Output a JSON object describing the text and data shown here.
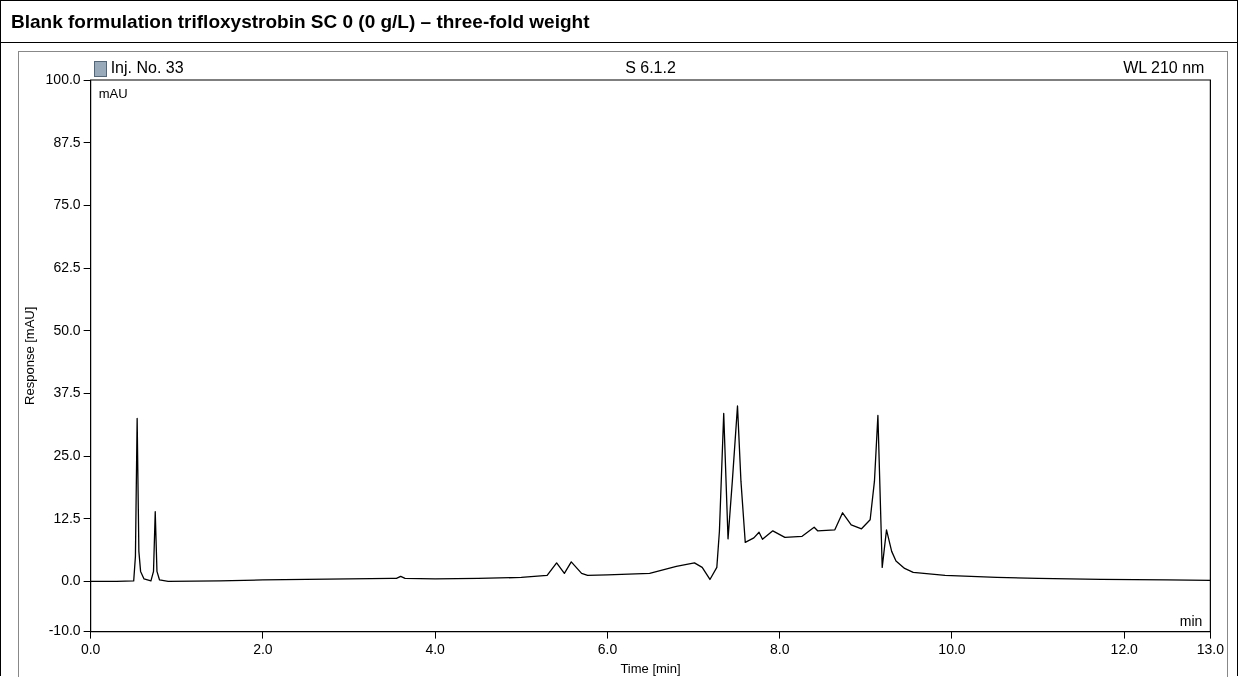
{
  "chart_data": {
    "type": "line",
    "title": "Blank formulation trifloxystrobin SC 0 (0 g/L) – three-fold weight",
    "xlabel": "Time [min]",
    "ylabel": "Response [mAU]",
    "annotations": [
      "Inj. No. 33",
      "S 6.1.2",
      "WL 210 nm",
      "mAU",
      "min"
    ],
    "series": [
      {
        "color": "#000000",
        "x": [
          0,
          0.3,
          0.5,
          0.52,
          0.54,
          0.56,
          0.58,
          0.62,
          0.7,
          0.73,
          0.75,
          0.77,
          0.8,
          0.9,
          1.5,
          2,
          2.5,
          3,
          3.5,
          3.55,
          3.6,
          3.65,
          4,
          4.5,
          5,
          5.3,
          5.41,
          5.5,
          5.58,
          5.7,
          5.77,
          6,
          6.49,
          6.8,
          7.01,
          7.1,
          7.19,
          7.27,
          7.3,
          7.35,
          7.4,
          7.45,
          7.51,
          7.55,
          7.6,
          7.7,
          7.76,
          7.8,
          7.92,
          8.06,
          8.26,
          8.4,
          8.44,
          8.64,
          8.73,
          8.83,
          8.95,
          9.05,
          9.1,
          9.14,
          9.19,
          9.24,
          9.3,
          9.35,
          9.45,
          9.55,
          9.92,
          10.52,
          11,
          11.73,
          12.5,
          13
        ],
        "values": [
          0,
          0,
          0.1,
          5,
          32.5,
          6,
          2,
          0.5,
          0.1,
          2,
          13.9,
          2,
          0.3,
          0,
          0.1,
          0.3,
          0.4,
          0.5,
          0.6,
          0.6,
          1,
          0.6,
          0.5,
          0.6,
          0.8,
          1.2,
          3.7,
          1.6,
          3.9,
          1.6,
          1.2,
          1.3,
          1.6,
          3,
          3.7,
          2.8,
          0.4,
          2.8,
          10,
          33.5,
          8.5,
          20,
          35,
          20,
          7.8,
          8.7,
          9.8,
          8.4,
          10.1,
          8.8,
          9,
          10.8,
          10.1,
          10.3,
          13.7,
          11.3,
          10.5,
          12.3,
          20,
          33.1,
          2.8,
          10.3,
          6,
          4.1,
          2.6,
          1.8,
          1.2,
          0.8,
          0.6,
          0.4,
          0.3,
          0.2
        ]
      }
    ],
    "xlim": [
      0,
      13
    ],
    "ylim": [
      -10,
      100
    ],
    "xticks": [
      {
        "value": 0,
        "label": "0.0"
      },
      {
        "value": 2,
        "label": "2.0"
      },
      {
        "value": 4,
        "label": "4.0"
      },
      {
        "value": 6,
        "label": "6.0"
      },
      {
        "value": 8,
        "label": "8.0"
      },
      {
        "value": 10,
        "label": "10.0"
      },
      {
        "value": 12,
        "label": "12.0"
      },
      {
        "value": 13,
        "label": "13.0"
      }
    ],
    "yticks": [
      {
        "value": -10,
        "label": "-10.0"
      },
      {
        "value": 0,
        "label": "0.0"
      },
      {
        "value": 12.5,
        "label": "12.5"
      },
      {
        "value": 25,
        "label": "25.0"
      },
      {
        "value": 37.5,
        "label": "37.5"
      },
      {
        "value": 50,
        "label": "50.0"
      },
      {
        "value": 62.5,
        "label": "62.5"
      },
      {
        "value": 75,
        "label": "75.0"
      },
      {
        "value": 87.5,
        "label": "87.5"
      },
      {
        "value": 100,
        "label": "100.0"
      }
    ],
    "grid": false,
    "legend": false,
    "marker": "none",
    "line_style": "solid"
  }
}
